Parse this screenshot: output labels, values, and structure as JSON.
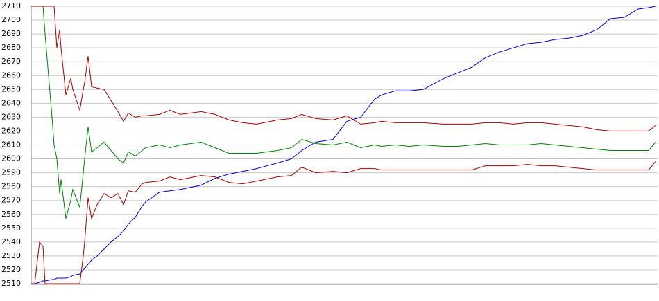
{
  "chart_data": {
    "type": "line",
    "x": [
      0,
      5,
      12,
      17,
      20,
      30,
      33,
      37,
      41,
      43,
      50,
      57,
      60,
      70,
      75,
      77,
      82,
      87,
      95,
      105,
      115,
      125,
      133,
      140,
      150,
      160,
      165,
      185,
      200,
      215,
      245,
      265,
      285,
      305,
      325,
      355,
      375,
      390,
      410,
      435,
      455,
      475,
      495,
      505,
      525,
      545,
      565,
      595,
      615,
      635,
      655,
      675,
      695,
      715,
      735,
      755,
      775,
      795,
      815,
      835,
      855,
      875,
      890,
      900
    ],
    "xlim": [
      0,
      900
    ],
    "ylim": [
      2510,
      2710
    ],
    "yticks": [
      2510,
      2520,
      2530,
      2540,
      2550,
      2560,
      2570,
      2580,
      2590,
      2600,
      2610,
      2620,
      2630,
      2640,
      2650,
      2660,
      2670,
      2680,
      2690,
      2700,
      2710
    ],
    "grid": true,
    "series": [
      {
        "color": "#0000cc",
        "values": [
          2510,
          2510,
          2511,
          2512,
          2512,
          2513,
          2513,
          2514,
          2514,
          2514,
          2514,
          2515,
          2516,
          2517,
          2520,
          2521,
          2524,
          2527,
          2530,
          2535,
          2540,
          2544,
          2548,
          2553,
          2558,
          2566,
          2569,
          2576,
          2577,
          2578,
          2581,
          2586,
          2589,
          2591,
          2593,
          2597,
          2600,
          2606,
          2612,
          2614,
          2627,
          2630,
          2643,
          2646,
          2649,
          2649,
          2650,
          2658,
          2662,
          2666,
          2673,
          2677,
          2680,
          2683,
          2684,
          2686,
          2687,
          2689,
          2693,
          2701,
          2702,
          2708,
          2709,
          2710
        ]
      },
      {
        "color": "#008000",
        "values": [
          null,
          null,
          null,
          2710,
          2690,
          2630,
          2610,
          2600,
          2575,
          2585,
          2557,
          2570,
          2578,
          2565,
          2590,
          2600,
          2623,
          2605,
          2608,
          2612,
          2606,
          2600,
          2597,
          2605,
          2602,
          2606,
          2608,
          2610,
          2608,
          2610,
          2612,
          2608,
          2604,
          2604,
          2604,
          2606,
          2608,
          2614,
          2611,
          2610,
          2612,
          2608,
          2610,
          2609,
          2610,
          2609,
          2610,
          2609,
          2609,
          2610,
          2611,
          2610,
          2610,
          2610,
          2611,
          2610,
          2609,
          2608,
          2607,
          2606,
          2606,
          2606,
          2606,
          2612
        ]
      },
      {
        "color": "#aa0000",
        "values": [
          2710,
          2710,
          2710,
          2710,
          2710,
          2710,
          2710,
          2680,
          2693,
          2680,
          2646,
          2658,
          2650,
          2635,
          2650,
          2655,
          2674,
          2652,
          2651,
          2650,
          2642,
          2634,
          2627,
          2633,
          2630,
          2631,
          2631,
          2632,
          2635,
          2632,
          2634,
          2632,
          2628,
          2626,
          2625,
          2628,
          2629,
          2632,
          2629,
          2628,
          2631,
          2625,
          2626,
          2627,
          2626,
          2626,
          2626,
          2625,
          2625,
          2625,
          2626,
          2626,
          2625,
          2626,
          2626,
          2625,
          2624,
          2623,
          2621,
          2620,
          2620,
          2620,
          2620,
          2624
        ]
      },
      {
        "color": "#aa0000",
        "values": [
          2510,
          2510,
          2540,
          2537,
          2510,
          2510,
          2510,
          2510,
          2510,
          2510,
          2510,
          2510,
          2510,
          2510,
          2530,
          2540,
          2572,
          2557,
          2567,
          2575,
          2572,
          2575,
          2567,
          2577,
          2576,
          2582,
          2583,
          2584,
          2587,
          2585,
          2588,
          2587,
          2583,
          2582,
          2584,
          2587,
          2588,
          2594,
          2590,
          2591,
          2590,
          2593,
          2593,
          2592,
          2592,
          2592,
          2592,
          2592,
          2592,
          2592,
          2595,
          2595,
          2595,
          2596,
          2595,
          2595,
          2594,
          2593,
          2592,
          2592,
          2592,
          2592,
          2592,
          2598
        ]
      }
    ]
  }
}
